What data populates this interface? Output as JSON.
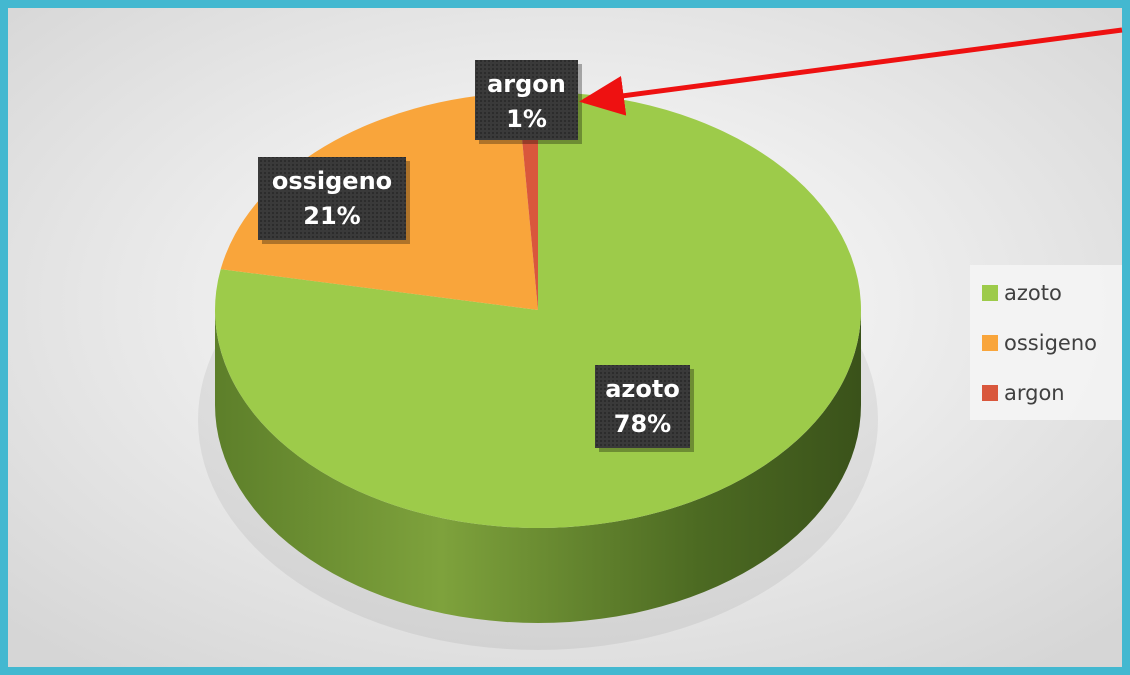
{
  "chart_data": {
    "type": "pie",
    "categories": [
      "azoto",
      "ossigeno",
      "argon"
    ],
    "values": [
      78,
      21,
      1
    ],
    "value_labels": [
      "78%",
      "21%",
      "1%"
    ],
    "colors": [
      "#9dcb4a",
      "#f9a53b",
      "#d9573c"
    ],
    "legend": "right"
  }
}
